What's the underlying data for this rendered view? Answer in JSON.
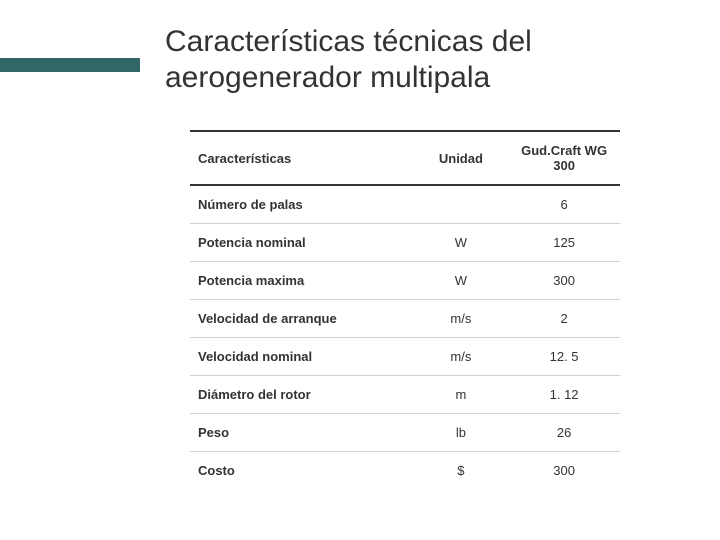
{
  "accent_color": "#336666",
  "title_text": "Características técnicas del aerogenerador multipala",
  "title_fontsize": 30,
  "table": {
    "columns": [
      "Características",
      "Unidad",
      "Gud.Craft WG 300"
    ],
    "header_fontsize": 13,
    "row_fontsize": 13,
    "border_color": "#d0d0d0",
    "header_border_color": "#333333",
    "col_widths_pct": [
      52,
      22,
      26
    ],
    "col_align": [
      "left",
      "center",
      "center"
    ],
    "rows": [
      [
        "Número de palas",
        "",
        "6"
      ],
      [
        "Potencia nominal",
        "W",
        "125"
      ],
      [
        "Potencia maxima",
        "W",
        "300"
      ],
      [
        "Velocidad de arranque",
        "m/s",
        "2"
      ],
      [
        "Velocidad nominal",
        "m/s",
        "12. 5"
      ],
      [
        "Diámetro del rotor",
        "m",
        "1. 12"
      ],
      [
        "Peso",
        "lb",
        "26"
      ],
      [
        "Costo",
        "$",
        "300"
      ]
    ]
  }
}
